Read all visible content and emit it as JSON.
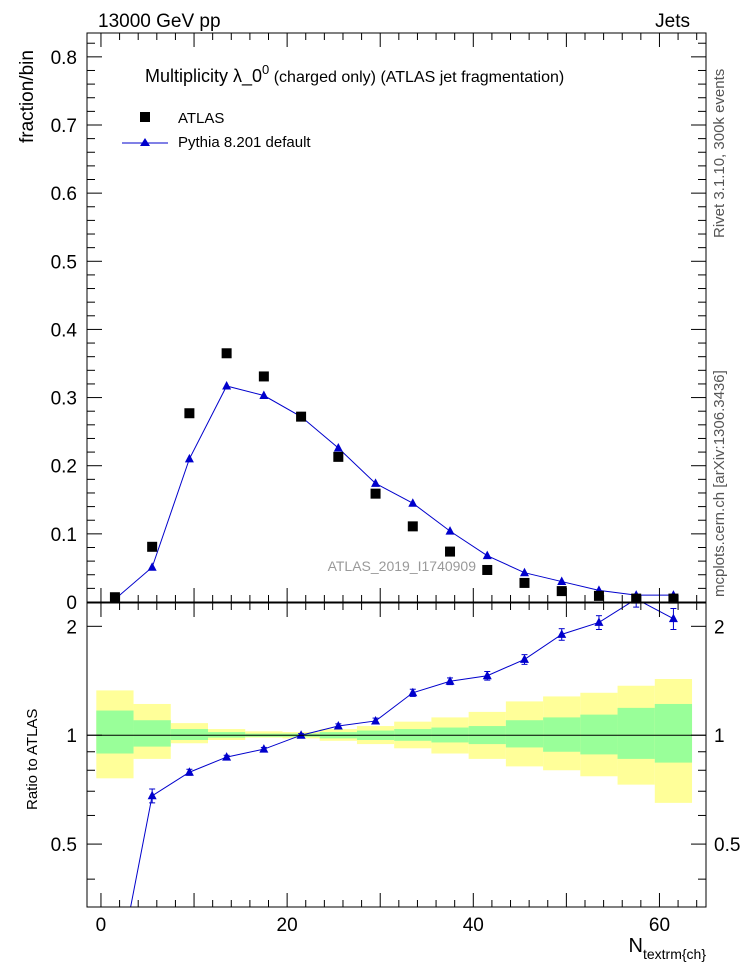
{
  "header": {
    "left": "13000 GeV pp",
    "right": "Jets"
  },
  "side_labels": {
    "rivet": "Rivet 3.1.10,  300k events",
    "mcplots": "mcplots.cern.ch [arXiv:1306.3436]"
  },
  "chart_data": [
    {
      "type": "scatter",
      "title_main": "Multiplicity  λ_0",
      "title_sup": "0",
      "title_rest": " (charged only) (ATLAS jet fragmentation)",
      "ylabel": "fraction/bin",
      "analysis_tag": "ATLAS_2019_I1740909",
      "ylim": [
        0,
        0.835
      ],
      "xlim": [
        -1.5,
        65
      ],
      "y_ticks": [
        0,
        0.1,
        0.2,
        0.3,
        0.4,
        0.5,
        0.6,
        0.7,
        0.8
      ],
      "y_tick_labels": [
        "0",
        "0.1",
        "0.2",
        "0.3",
        "0.4",
        "0.5",
        "0.6",
        "0.7",
        "0.8"
      ],
      "legend_position": "top-left",
      "series": [
        {
          "name": "ATLAS",
          "style": "square-markers",
          "color": "#000000",
          "x": [
            1.5,
            5.5,
            9.5,
            13.5,
            17.5,
            21.5,
            25.5,
            29.5,
            33.5,
            37.5,
            41.5,
            45.5,
            49.5,
            53.5,
            57.5,
            61.5
          ],
          "values": [
            0.007,
            0.081,
            0.277,
            0.365,
            0.331,
            0.272,
            0.213,
            0.159,
            0.111,
            0.074,
            0.047,
            0.028,
            0.016,
            0.009,
            0.005,
            0.005
          ]
        },
        {
          "name": "Pythia 8.201 default",
          "style": "line-triangles",
          "color": "#0000cc",
          "x": [
            1.5,
            5.5,
            9.5,
            13.5,
            17.5,
            21.5,
            25.5,
            29.5,
            33.5,
            37.5,
            41.5,
            45.5,
            49.5,
            53.5,
            57.5,
            61.5
          ],
          "values": [
            0.004,
            0.051,
            0.21,
            0.317,
            0.303,
            0.272,
            0.226,
            0.174,
            0.145,
            0.104,
            0.068,
            0.043,
            0.03,
            0.017,
            0.01,
            0.01
          ]
        }
      ]
    },
    {
      "type": "line",
      "ylabel": "Ratio to ATLAS",
      "xlabel": "N",
      "xlabel_sub": "textrm{ch}",
      "ylim": [
        0.335,
        2.32
      ],
      "xlim": [
        -1.5,
        65
      ],
      "x_ticks": [
        0,
        20,
        40,
        60
      ],
      "x_tick_labels": [
        "0",
        "20",
        "40",
        "60"
      ],
      "y_ticks": [
        0.5,
        1,
        2
      ],
      "y_tick_labels": [
        "0.5",
        "1",
        "2"
      ],
      "reference": 1,
      "bands": {
        "edges": [
          -0.5,
          3.5,
          7.5,
          11.5,
          15.5,
          19.5,
          23.5,
          27.5,
          31.5,
          35.5,
          39.5,
          43.5,
          47.5,
          51.5,
          55.5,
          59.5,
          63.5
        ],
        "yellow_low": [
          0.76,
          0.86,
          0.95,
          0.97,
          0.985,
          0.98,
          0.965,
          0.945,
          0.92,
          0.89,
          0.86,
          0.82,
          0.8,
          0.77,
          0.73,
          0.65
        ],
        "yellow_high": [
          1.33,
          1.22,
          1.08,
          1.04,
          1.025,
          1.02,
          1.04,
          1.06,
          1.09,
          1.12,
          1.16,
          1.24,
          1.28,
          1.31,
          1.37,
          1.43
        ],
        "green_low": [
          0.89,
          0.93,
          0.97,
          0.985,
          0.99,
          0.99,
          0.98,
          0.97,
          0.965,
          0.955,
          0.945,
          0.925,
          0.9,
          0.885,
          0.86,
          0.84
        ],
        "green_high": [
          1.17,
          1.1,
          1.04,
          1.02,
          1.01,
          1.01,
          1.02,
          1.03,
          1.04,
          1.05,
          1.06,
          1.1,
          1.12,
          1.14,
          1.19,
          1.22
        ]
      },
      "series": [
        {
          "name": "Pythia 8.201 default",
          "color": "#0000cc",
          "x": [
            1.5,
            5.5,
            9.5,
            13.5,
            17.5,
            21.5,
            25.5,
            29.5,
            33.5,
            37.5,
            41.5,
            45.5,
            49.5,
            53.5,
            57.5,
            61.5
          ],
          "values": [
            0.2,
            0.68,
            0.79,
            0.87,
            0.915,
            1.0,
            1.06,
            1.095,
            1.31,
            1.41,
            1.46,
            1.62,
            1.9,
            2.05,
            2.38,
            2.1
          ],
          "errors": [
            0,
            0.03,
            0.015,
            0.01,
            0.01,
            0.01,
            0.015,
            0.02,
            0.03,
            0.03,
            0.04,
            0.05,
            0.07,
            0.09,
            0.12,
            0.14
          ]
        }
      ]
    }
  ]
}
